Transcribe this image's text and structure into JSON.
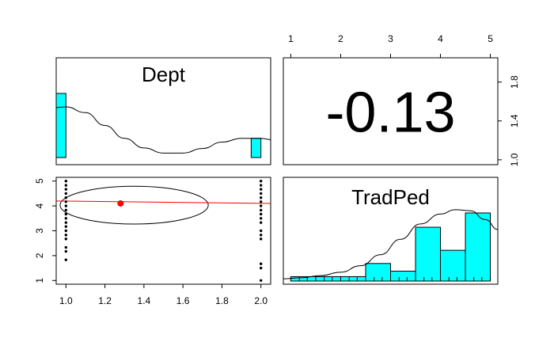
{
  "chart_data": {
    "type": "scatter-matrix",
    "variables": [
      "Dept",
      "TradPed"
    ],
    "colors": {
      "hist_fill": "#00FFFF",
      "fit_line": "#FF0000",
      "center_point": "#FF0000",
      "stroke": "#000000"
    },
    "correlation": {
      "value": -0.13,
      "label": "-0.13"
    },
    "axes": {
      "dept": {
        "range": [
          0.95,
          2.05
        ],
        "ticks": [
          1.0,
          1.2,
          1.4,
          1.6,
          1.8,
          2.0
        ],
        "tick_labels": [
          "1.0",
          "1.2",
          "1.4",
          "1.6",
          "1.8",
          "2.0"
        ]
      },
      "tradped_left": {
        "range": [
          0.85,
          5.15
        ],
        "ticks": [
          1,
          2,
          3,
          4,
          5
        ],
        "tick_labels": [
          "1",
          "2",
          "3",
          "4",
          "5"
        ]
      },
      "tradped_top": {
        "range": [
          0.85,
          5.15
        ],
        "ticks": [
          1,
          2,
          3,
          4,
          5
        ],
        "tick_labels": [
          "1",
          "2",
          "3",
          "4",
          "5"
        ]
      },
      "dept_right": {
        "range": [
          0.95,
          2.05
        ],
        "ticks": [
          1.0,
          1.4,
          1.8
        ],
        "tick_labels": [
          "1.0",
          "1.4",
          "1.8"
        ]
      }
    },
    "dept_hist": {
      "bins": [
        {
          "x0": 0.95,
          "x1": 1.0,
          "height": 1.0
        },
        {
          "x0": 1.95,
          "x1": 2.0,
          "height": 0.3
        }
      ],
      "density": [
        [
          0.95,
          0.78
        ],
        [
          1.0,
          0.79
        ],
        [
          1.1,
          0.7
        ],
        [
          1.2,
          0.5
        ],
        [
          1.3,
          0.3
        ],
        [
          1.4,
          0.15
        ],
        [
          1.5,
          0.07
        ],
        [
          1.6,
          0.07
        ],
        [
          1.7,
          0.14
        ],
        [
          1.8,
          0.24
        ],
        [
          1.9,
          0.3
        ],
        [
          2.0,
          0.3
        ],
        [
          2.05,
          0.28
        ]
      ]
    },
    "tradped_hist": {
      "bins": [
        {
          "x0": 1.0,
          "x1": 1.5,
          "height": 0.04
        },
        {
          "x0": 1.5,
          "x1": 2.0,
          "height": 0.04
        },
        {
          "x0": 2.0,
          "x1": 2.5,
          "height": 0.04
        },
        {
          "x0": 2.5,
          "x1": 3.0,
          "height": 0.16
        },
        {
          "x0": 3.0,
          "x1": 3.5,
          "height": 0.09
        },
        {
          "x0": 3.5,
          "x1": 4.0,
          "height": 0.49
        },
        {
          "x0": 4.0,
          "x1": 4.5,
          "height": 0.28
        },
        {
          "x0": 4.5,
          "x1": 5.0,
          "height": 0.62
        }
      ],
      "rug": [
        1.0,
        1.17,
        1.33,
        1.5,
        1.67,
        1.83,
        2.0,
        2.17,
        2.33,
        2.5,
        2.67,
        2.83,
        3.0,
        3.17,
        3.33,
        3.5,
        3.67,
        3.83,
        4.0,
        4.17,
        4.33,
        4.5,
        4.67,
        4.83,
        5.0
      ],
      "density": [
        [
          0.85,
          0.02
        ],
        [
          1.2,
          0.03
        ],
        [
          1.6,
          0.05
        ],
        [
          2.0,
          0.08
        ],
        [
          2.4,
          0.14
        ],
        [
          2.8,
          0.24
        ],
        [
          3.2,
          0.38
        ],
        [
          3.6,
          0.52
        ],
        [
          4.0,
          0.61
        ],
        [
          4.3,
          0.65
        ],
        [
          4.6,
          0.64
        ],
        [
          4.9,
          0.56
        ],
        [
          5.15,
          0.47
        ]
      ]
    },
    "scatter": {
      "points": [
        [
          1,
          1.83
        ],
        [
          1,
          2.17
        ],
        [
          1,
          2.33
        ],
        [
          1,
          2.67
        ],
        [
          1,
          2.83
        ],
        [
          1,
          3.0
        ],
        [
          1,
          3.17
        ],
        [
          1,
          3.33
        ],
        [
          1,
          3.5
        ],
        [
          1,
          3.67
        ],
        [
          1,
          3.83
        ],
        [
          1,
          4.0
        ],
        [
          1,
          4.17
        ],
        [
          1,
          4.33
        ],
        [
          1,
          4.5
        ],
        [
          1,
          4.67
        ],
        [
          1,
          4.83
        ],
        [
          1,
          5.0
        ],
        [
          2,
          1.0
        ],
        [
          2,
          1.5
        ],
        [
          2,
          1.67
        ],
        [
          2,
          2.67
        ],
        [
          2,
          2.83
        ],
        [
          2,
          3.0
        ],
        [
          2,
          3.33
        ],
        [
          2,
          3.5
        ],
        [
          2,
          3.67
        ],
        [
          2,
          3.83
        ],
        [
          2,
          4.0
        ],
        [
          2,
          4.17
        ],
        [
          2,
          4.33
        ],
        [
          2,
          4.5
        ],
        [
          2,
          4.67
        ],
        [
          2,
          4.83
        ],
        [
          2,
          5.0
        ]
      ],
      "center": [
        1.28,
        4.1
      ],
      "fit_line": [
        [
          0.95,
          4.2
        ],
        [
          2.05,
          4.1
        ]
      ],
      "ellipse": {
        "cx": 1.35,
        "cy": 4.03,
        "rx": 0.38,
        "ry": 0.76
      }
    }
  }
}
